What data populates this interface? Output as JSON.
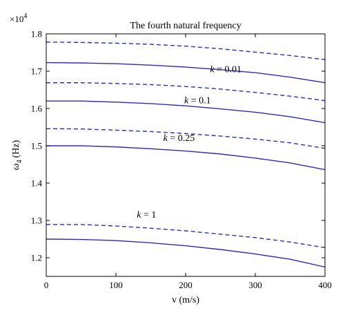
{
  "chart_data": {
    "type": "line",
    "title": "The fourth natural frequency",
    "xlabel": "v (m/s)",
    "ylabel": "ω4 (Hz)",
    "ylabel_main": "ω",
    "ylabel_sub": "4",
    "ylabel_unit": "(Hz)",
    "multiplier_base": "×10",
    "multiplier_exp": "4",
    "xlim": [
      0,
      400
    ],
    "ylim": [
      1.15,
      1.8
    ],
    "xticks": [
      0,
      100,
      200,
      300,
      400
    ],
    "yticks": [
      1.2,
      1.3,
      1.4,
      1.5,
      1.6,
      1.7,
      1.8
    ],
    "line_color": "#2b2bb8",
    "grid": false,
    "series": [
      {
        "style": "dashed",
        "x": [
          0,
          50,
          100,
          150,
          200,
          250,
          300,
          350,
          400
        ],
        "y": [
          1.778,
          1.777,
          1.775,
          1.772,
          1.767,
          1.76,
          1.751,
          1.742,
          1.731
        ]
      },
      {
        "style": "solid",
        "x": [
          0,
          50,
          100,
          150,
          200,
          250,
          300,
          350,
          400
        ],
        "y": [
          1.723,
          1.722,
          1.72,
          1.716,
          1.711,
          1.704,
          1.696,
          1.684,
          1.669
        ]
      },
      {
        "style": "dashed",
        "x": [
          0,
          50,
          100,
          150,
          200,
          250,
          300,
          350,
          400
        ],
        "y": [
          1.669,
          1.669,
          1.667,
          1.664,
          1.659,
          1.652,
          1.643,
          1.633,
          1.621
        ]
      },
      {
        "style": "solid",
        "x": [
          0,
          50,
          100,
          150,
          200,
          250,
          300,
          350,
          400
        ],
        "y": [
          1.62,
          1.62,
          1.617,
          1.613,
          1.607,
          1.599,
          1.59,
          1.578,
          1.562
        ]
      },
      {
        "style": "dashed",
        "x": [
          0,
          50,
          100,
          150,
          200,
          250,
          300,
          350,
          400
        ],
        "y": [
          1.546,
          1.545,
          1.542,
          1.538,
          1.533,
          1.526,
          1.518,
          1.508,
          1.493
        ]
      },
      {
        "style": "solid",
        "x": [
          0,
          50,
          100,
          150,
          200,
          250,
          300,
          350,
          400
        ],
        "y": [
          1.5,
          1.5,
          1.497,
          1.492,
          1.486,
          1.478,
          1.467,
          1.454,
          1.436
        ]
      },
      {
        "style": "dashed",
        "x": [
          0,
          50,
          100,
          150,
          200,
          250,
          300,
          350,
          400
        ],
        "y": [
          1.289,
          1.289,
          1.285,
          1.279,
          1.272,
          1.263,
          1.254,
          1.242,
          1.227
        ]
      },
      {
        "style": "solid",
        "x": [
          0,
          50,
          100,
          150,
          200,
          250,
          300,
          350,
          400
        ],
        "y": [
          1.25,
          1.249,
          1.246,
          1.24,
          1.232,
          1.222,
          1.21,
          1.196,
          1.175
        ]
      }
    ],
    "annotations": [
      {
        "italic": "k",
        "rest": " = 0.01",
        "x": 235,
        "y": 1.697
      },
      {
        "italic": "k",
        "rest": " = 0.1",
        "x": 198,
        "y": 1.614
      },
      {
        "italic": "k",
        "rest": " = 0.25",
        "x": 168,
        "y": 1.513
      },
      {
        "italic": "k",
        "rest": " = 1",
        "x": 130,
        "y": 1.307
      }
    ]
  }
}
